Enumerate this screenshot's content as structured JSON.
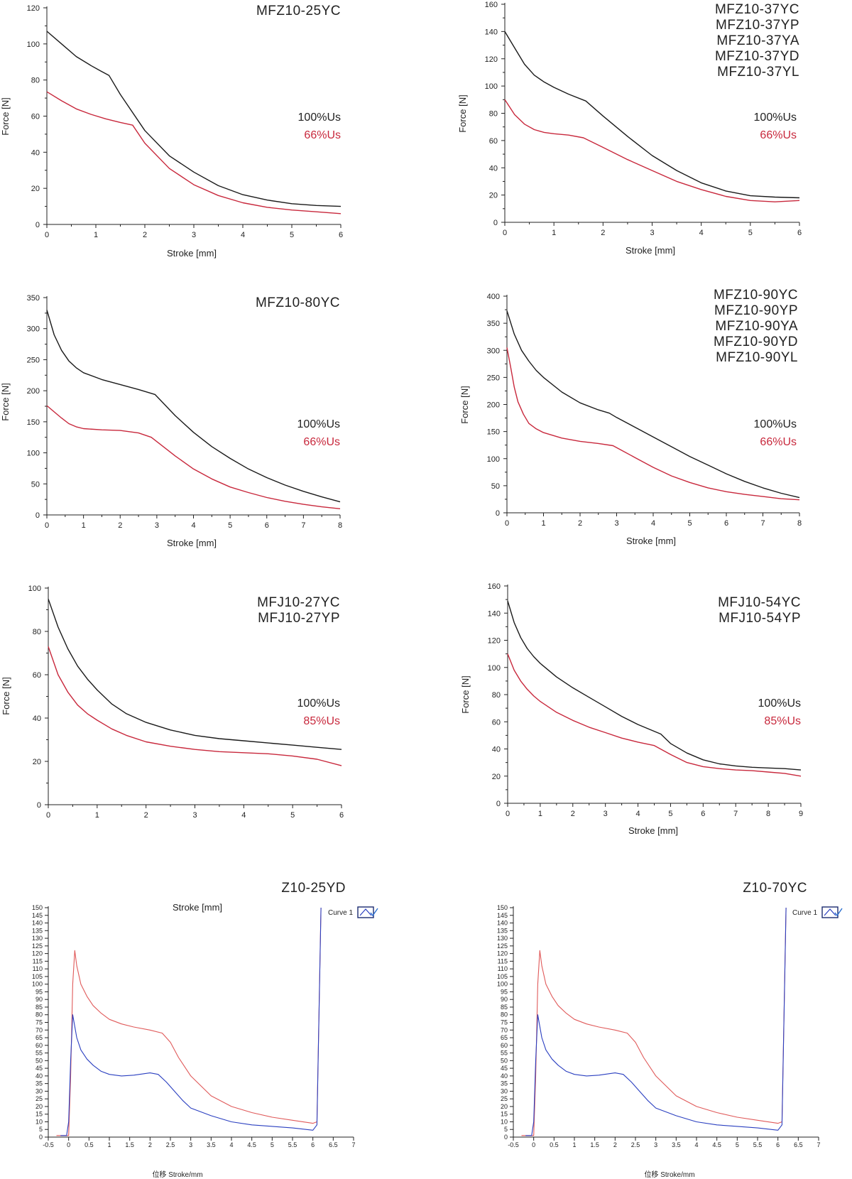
{
  "colors": {
    "black_series": "#1a1a1a",
    "red_series": "#c8283c",
    "lightred_series": "#e05a5a",
    "blue_series": "#2a3fc0"
  },
  "chart_data": [
    {
      "type": "line",
      "model_labels": [
        "MFZ10-25YC"
      ],
      "xlabel": "Stroke [mm]",
      "ylabel": "Force [N]",
      "xlim": [
        0,
        6
      ],
      "ylim": [
        0,
        120
      ],
      "xticks": [
        0,
        1,
        2,
        3,
        4,
        5,
        6
      ],
      "yticks": [
        0,
        20,
        40,
        60,
        80,
        100,
        120
      ],
      "legend": [
        "100%Us",
        "66%Us"
      ],
      "series": [
        {
          "name": "100%Us",
          "color": "black",
          "x": [
            0,
            0.3,
            0.6,
            0.9,
            1.1,
            1.27,
            1.5,
            2,
            2.5,
            3,
            3.5,
            4,
            4.5,
            5,
            5.5,
            6
          ],
          "y": [
            107,
            100,
            93,
            88,
            85,
            82.5,
            72,
            52,
            38,
            29,
            21.5,
            16.5,
            13.5,
            11.5,
            10.5,
            10
          ]
        },
        {
          "name": "66%Us",
          "color": "red",
          "x": [
            0,
            0.3,
            0.6,
            0.9,
            1.2,
            1.5,
            1.75,
            2,
            2.5,
            3,
            3.5,
            4,
            4.5,
            5,
            5.5,
            6
          ],
          "y": [
            73.5,
            68.5,
            64,
            61,
            58.5,
            56.5,
            55,
            45,
            31,
            22,
            16,
            12,
            9.5,
            8,
            7,
            6
          ]
        }
      ]
    },
    {
      "type": "line",
      "model_labels": [
        "MFZ10-37YC",
        "MFZ10-37YP",
        "MFZ10-37YA",
        "MFZ10-37YD",
        "MFZ10-37YL"
      ],
      "xlabel": "Stroke [mm]",
      "ylabel": "Force [N]",
      "xlim": [
        0,
        6
      ],
      "ylim": [
        0,
        160
      ],
      "xticks": [
        0,
        1,
        2,
        3,
        4,
        5,
        6
      ],
      "yticks": [
        0,
        20,
        40,
        60,
        80,
        100,
        120,
        140,
        160
      ],
      "legend": [
        "100%Us",
        "66%Us"
      ],
      "series": [
        {
          "name": "100%Us",
          "color": "black",
          "x": [
            0,
            0.2,
            0.4,
            0.6,
            0.8,
            1,
            1.3,
            1.65,
            2,
            2.5,
            3,
            3.5,
            4,
            4.5,
            5,
            5.5,
            6
          ],
          "y": [
            140,
            128,
            116,
            108,
            103,
            99,
            94,
            89,
            78,
            63,
            49,
            38,
            29,
            23,
            19.5,
            18.5,
            18
          ]
        },
        {
          "name": "66%Us",
          "color": "red",
          "x": [
            0,
            0.2,
            0.4,
            0.6,
            0.8,
            1,
            1.3,
            1.6,
            2,
            2.5,
            3,
            3.5,
            4,
            4.5,
            5,
            5.5,
            6
          ],
          "y": [
            90,
            79,
            72,
            68,
            66,
            65,
            64,
            62,
            55,
            46,
            38,
            30,
            24,
            19,
            16,
            15,
            16
          ]
        }
      ]
    },
    {
      "type": "line",
      "model_labels": [
        "MFZ10-80YC"
      ],
      "xlabel": "Stroke [mm]",
      "ylabel": "Force [N]",
      "xlim": [
        0,
        8
      ],
      "ylim": [
        0,
        350
      ],
      "xticks": [
        0,
        1,
        2,
        3,
        4,
        5,
        6,
        7,
        8
      ],
      "yticks": [
        0,
        50,
        100,
        150,
        200,
        250,
        300,
        350
      ],
      "legend": [
        "100%Us",
        "66%Us"
      ],
      "series": [
        {
          "name": "100%Us",
          "color": "black",
          "x": [
            0,
            0.2,
            0.4,
            0.6,
            0.8,
            1,
            1.5,
            2,
            2.5,
            2.95,
            3.5,
            4,
            4.5,
            5,
            5.5,
            6,
            6.5,
            7,
            7.5,
            8
          ],
          "y": [
            330,
            290,
            265,
            248,
            237,
            229,
            218,
            210,
            202,
            194,
            160,
            133,
            110,
            91,
            74,
            60,
            48,
            38,
            29,
            21
          ]
        },
        {
          "name": "66%Us",
          "color": "red",
          "x": [
            0,
            0.2,
            0.4,
            0.6,
            0.8,
            1,
            1.5,
            2,
            2.5,
            2.85,
            3.5,
            4,
            4.5,
            5,
            5.5,
            6,
            6.5,
            7,
            7.5,
            8
          ],
          "y": [
            176,
            166,
            156,
            147,
            142,
            139,
            137,
            136,
            132,
            125,
            95,
            74,
            58,
            45,
            36,
            28,
            22,
            17,
            13,
            10
          ]
        }
      ]
    },
    {
      "type": "line",
      "model_labels": [
        "MFZ10-90YC",
        "MFZ10-90YP",
        "MFZ10-90YA",
        "MFZ10-90YD",
        "MFZ10-90YL"
      ],
      "xlabel": "Stroke [mm]",
      "ylabel": "Force [N]",
      "xlim": [
        0,
        8
      ],
      "ylim": [
        0,
        400
      ],
      "xticks": [
        0,
        1,
        2,
        3,
        4,
        5,
        6,
        7,
        8
      ],
      "yticks": [
        0,
        50,
        100,
        150,
        200,
        250,
        300,
        350,
        400
      ],
      "legend": [
        "100%Us",
        "66%Us"
      ],
      "series": [
        {
          "name": "100%Us",
          "color": "black",
          "x": [
            0,
            0.2,
            0.4,
            0.6,
            0.8,
            1,
            1.5,
            2,
            2.5,
            2.8,
            3,
            3.5,
            4,
            4.5,
            5,
            5.5,
            6,
            6.5,
            7,
            7.5,
            8
          ],
          "y": [
            373,
            330,
            300,
            280,
            263,
            250,
            223,
            203,
            190,
            184,
            176,
            158,
            140,
            122,
            104,
            88,
            72,
            58,
            46,
            36,
            28
          ]
        },
        {
          "name": "66%Us",
          "color": "red",
          "x": [
            0,
            0.1,
            0.2,
            0.3,
            0.45,
            0.6,
            0.8,
            1,
            1.5,
            2,
            2.5,
            2.9,
            3.5,
            4,
            4.5,
            5,
            5.5,
            6,
            6.5,
            7,
            7.5,
            8
          ],
          "y": [
            305,
            270,
            232,
            205,
            182,
            165,
            155,
            148,
            138,
            132,
            128,
            124,
            102,
            84,
            68,
            56,
            46,
            39,
            34,
            30,
            26,
            24
          ]
        }
      ]
    },
    {
      "type": "line",
      "model_labels": [
        "MFJ10-27YC",
        "MFJ10-27YP"
      ],
      "xlabel": "",
      "ylabel": "Force [N]",
      "xlim": [
        0,
        6
      ],
      "ylim": [
        0,
        100
      ],
      "xticks": [
        0,
        1,
        2,
        3,
        4,
        5,
        6
      ],
      "yticks": [
        0,
        20,
        40,
        60,
        80,
        100
      ],
      "legend": [
        "100%Us",
        "85%Us"
      ],
      "series": [
        {
          "name": "100%Us",
          "color": "black",
          "x": [
            0,
            0.2,
            0.4,
            0.6,
            0.8,
            1,
            1.3,
            1.6,
            2,
            2.5,
            3,
            3.5,
            4,
            4.5,
            5,
            5.5,
            6
          ],
          "y": [
            95,
            82,
            72,
            64,
            58,
            53,
            46.5,
            42,
            38,
            34.5,
            32,
            30.5,
            29.5,
            28.5,
            27.5,
            26.5,
            25.5
          ]
        },
        {
          "name": "85%Us",
          "color": "red",
          "x": [
            0,
            0.2,
            0.4,
            0.6,
            0.8,
            1,
            1.3,
            1.6,
            2,
            2.5,
            3,
            3.5,
            4,
            4.5,
            5,
            5.5,
            6
          ],
          "y": [
            73,
            60,
            52,
            46,
            42,
            39,
            35,
            32,
            29,
            27,
            25.5,
            24.5,
            24,
            23.5,
            22.5,
            21,
            18
          ]
        }
      ]
    },
    {
      "type": "line",
      "model_labels": [
        "MFJ10-54YC",
        "MFJ10-54YP"
      ],
      "xlabel": "Stroke [mm]",
      "ylabel": "Force [N]",
      "xlim": [
        0,
        9
      ],
      "ylim": [
        0,
        160
      ],
      "xticks": [
        0,
        1,
        2,
        3,
        4,
        5,
        6,
        7,
        8,
        9
      ],
      "yticks": [
        0,
        20,
        40,
        60,
        80,
        100,
        120,
        140,
        160
      ],
      "legend": [
        "100%Us",
        "85%Us"
      ],
      "series": [
        {
          "name": "100%Us",
          "color": "black",
          "x": [
            0,
            0.2,
            0.4,
            0.6,
            0.8,
            1,
            1.5,
            2,
            2.5,
            3,
            3.5,
            4,
            4.7,
            5,
            5.5,
            6,
            6.5,
            7,
            7.5,
            8,
            8.5,
            9
          ],
          "y": [
            149,
            133,
            122,
            114,
            108,
            103,
            93,
            85,
            78,
            71,
            64,
            58,
            51,
            44,
            37,
            32,
            29,
            27.5,
            26.5,
            26,
            25.5,
            24.5
          ]
        },
        {
          "name": "85%Us",
          "color": "red",
          "x": [
            0,
            0.2,
            0.4,
            0.6,
            0.8,
            1,
            1.5,
            2,
            2.5,
            3,
            3.5,
            4,
            4.5,
            5,
            5.5,
            6,
            6.5,
            7,
            7.5,
            8,
            8.5,
            9
          ],
          "y": [
            110,
            98,
            90,
            84,
            79,
            75,
            67,
            61,
            56,
            52,
            48,
            45,
            42.5,
            36,
            30,
            27,
            25.5,
            24.5,
            24,
            23,
            22,
            20
          ]
        }
      ]
    },
    {
      "type": "line",
      "model_labels": [
        "Z10-25YD"
      ],
      "plot_title": "Stroke [mm]",
      "xlabel": "位移 Stroke/mm",
      "ylabel": "",
      "xlim": [
        -0.5,
        7
      ],
      "ylim": [
        0,
        150
      ],
      "xticks": [
        -0.5,
        0,
        0.5,
        1,
        1.5,
        2,
        2.5,
        3,
        3.5,
        4,
        4.5,
        5,
        5.5,
        6,
        6.5,
        7
      ],
      "xtick_labels": [
        "-0.5",
        "0",
        "0.5",
        "1",
        "1.5",
        "2",
        "2.5",
        "3",
        "3.5",
        "4",
        "4.5",
        "5",
        "5.5",
        "6",
        "6.5",
        "7"
      ],
      "yticks": [
        0,
        5,
        10,
        15,
        20,
        25,
        30,
        35,
        40,
        45,
        50,
        55,
        60,
        65,
        70,
        75,
        80,
        85,
        90,
        95,
        100,
        105,
        110,
        115,
        120,
        125,
        130,
        135,
        140,
        145,
        150
      ],
      "legend": [
        "Curve 1"
      ],
      "series": [
        {
          "name": "",
          "color": "lightred",
          "x": [
            -0.3,
            0,
            0.05,
            0.1,
            0.15,
            0.2,
            0.3,
            0.45,
            0.6,
            0.8,
            1,
            1.3,
            1.6,
            2,
            2.3,
            2.5,
            2.7,
            3,
            3.5,
            4,
            4.5,
            5,
            5.5,
            6,
            6.1,
            6.2
          ],
          "y": [
            1,
            1,
            40,
            100,
            122,
            112,
            100,
            92,
            86,
            81,
            77,
            74,
            72,
            70,
            68,
            62,
            52,
            40,
            27,
            20,
            16,
            13,
            11,
            9,
            10,
            150
          ]
        },
        {
          "name": "Curve 1",
          "color": "blue",
          "x": [
            -0.2,
            -0.05,
            0,
            0.05,
            0.1,
            0.2,
            0.3,
            0.45,
            0.6,
            0.8,
            1,
            1.3,
            1.6,
            2,
            2.2,
            2.4,
            2.6,
            2.8,
            3,
            3.5,
            4,
            4.5,
            5,
            5.5,
            6,
            6.1,
            6.2
          ],
          "y": [
            1,
            1,
            10,
            50,
            80,
            65,
            57,
            51,
            47,
            43,
            41,
            40,
            40.5,
            42,
            41,
            36,
            30,
            24,
            19,
            14,
            10,
            8,
            7,
            6,
            4.5,
            8,
            150
          ]
        }
      ]
    },
    {
      "type": "line",
      "model_labels": [
        "Z10-70YC"
      ],
      "xlabel": "位移 Stroke/mm",
      "ylabel": "",
      "xlim": [
        -0.5,
        7
      ],
      "ylim": [
        0,
        150
      ],
      "xticks": [
        -0.5,
        0,
        0.5,
        1,
        1.5,
        2,
        2.5,
        3,
        3.5,
        4,
        4.5,
        5,
        5.5,
        6,
        6.5,
        7
      ],
      "xtick_labels": [
        "-0.5",
        "0",
        "0.5",
        "1",
        "1.5",
        "2",
        "2.5",
        "3",
        "3.5",
        "4",
        "4.5",
        "5",
        "5.5",
        "6",
        "6.5",
        "7"
      ],
      "yticks": [
        0,
        5,
        10,
        15,
        20,
        25,
        30,
        35,
        40,
        45,
        50,
        55,
        60,
        65,
        70,
        75,
        80,
        85,
        90,
        95,
        100,
        105,
        110,
        115,
        120,
        125,
        130,
        135,
        140,
        145,
        150
      ],
      "legend": [
        "Curve 1"
      ],
      "series": [
        {
          "name": "",
          "color": "lightred",
          "x": [
            -0.3,
            0,
            0.05,
            0.1,
            0.15,
            0.2,
            0.3,
            0.45,
            0.6,
            0.8,
            1,
            1.3,
            1.6,
            2,
            2.3,
            2.5,
            2.7,
            3,
            3.5,
            4,
            4.5,
            5,
            5.5,
            6,
            6.1,
            6.2
          ],
          "y": [
            1,
            1,
            40,
            100,
            122,
            112,
            100,
            92,
            86,
            81,
            77,
            74,
            72,
            70,
            68,
            62,
            52,
            40,
            27,
            20,
            16,
            13,
            11,
            9,
            10,
            150
          ]
        },
        {
          "name": "Curve 1",
          "color": "blue",
          "x": [
            -0.2,
            -0.05,
            0,
            0.05,
            0.1,
            0.2,
            0.3,
            0.45,
            0.6,
            0.8,
            1,
            1.3,
            1.6,
            2,
            2.2,
            2.4,
            2.6,
            2.8,
            3,
            3.5,
            4,
            4.5,
            5,
            5.5,
            6,
            6.1,
            6.2
          ],
          "y": [
            1,
            1,
            10,
            50,
            80,
            65,
            57,
            51,
            47,
            43,
            41,
            40,
            40.5,
            42,
            41,
            36,
            30,
            24,
            19,
            14,
            10,
            8,
            7,
            6,
            4.5,
            8,
            150
          ]
        }
      ]
    }
  ]
}
